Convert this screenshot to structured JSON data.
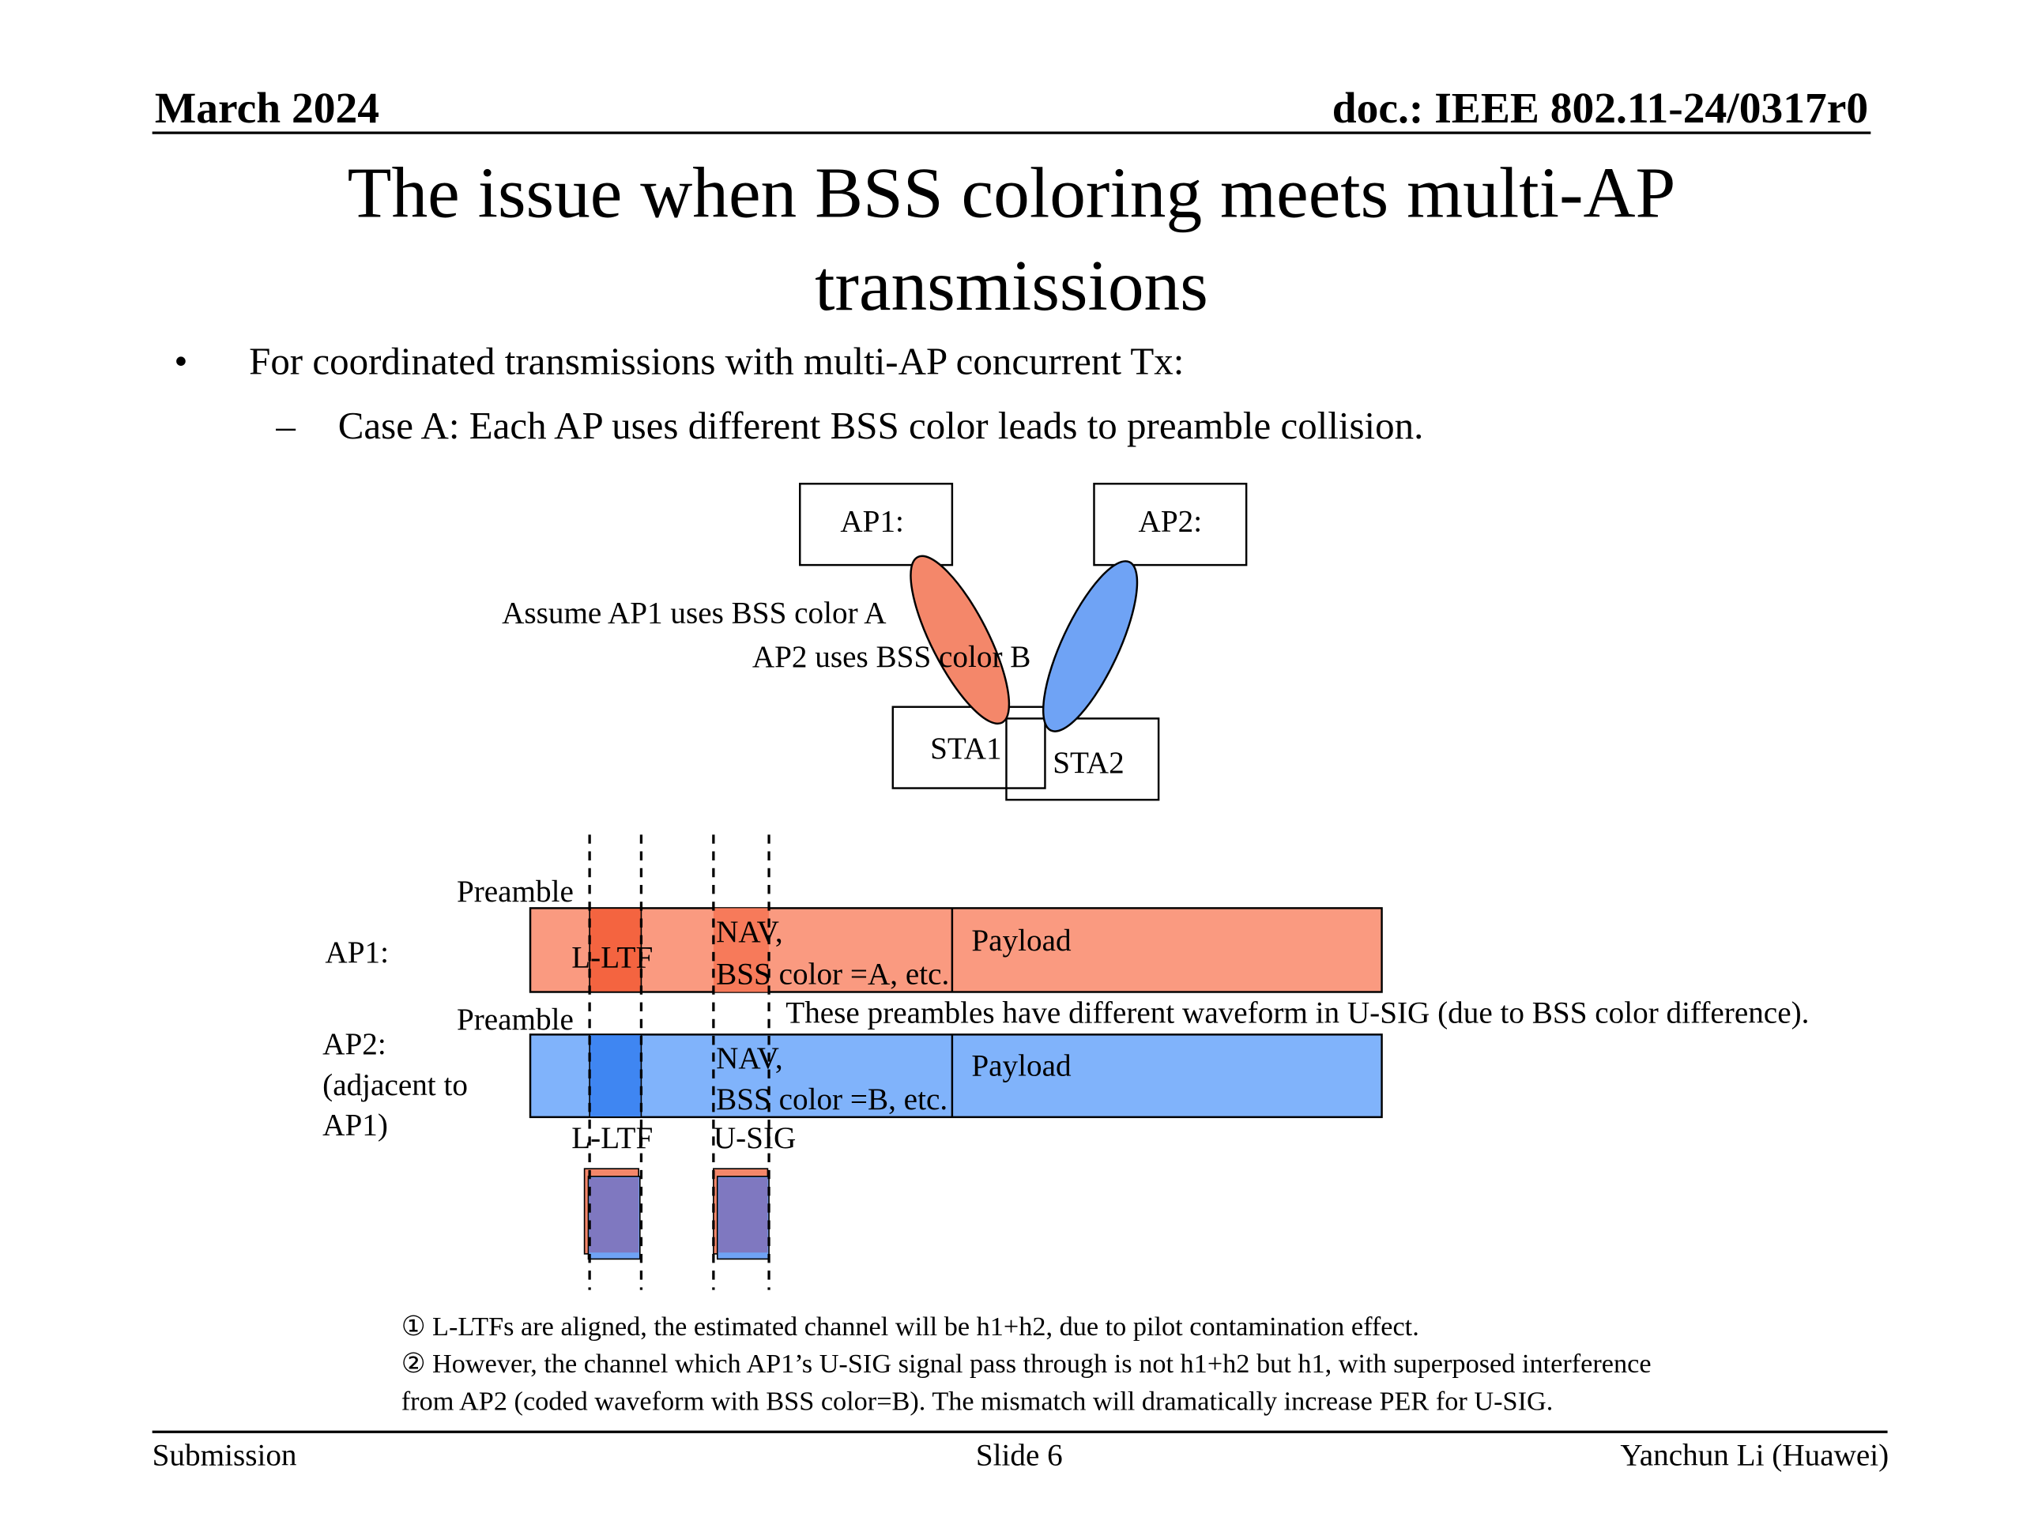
{
  "header": {
    "date": "March 2024",
    "doc": "doc.: IEEE 802.11-24/0317r0"
  },
  "title": [
    "The issue when BSS coloring meets multi-AP",
    "transmissions"
  ],
  "bullets": [
    {
      "marker": "•",
      "text": "For coordinated transmissions with multi-AP concurrent Tx:"
    },
    {
      "marker": "–",
      "text": "Case A: Each AP uses different BSS color leads to preamble collision."
    }
  ],
  "diagram": {
    "ap1_box": "AP1:",
    "ap2_box": "AP2:",
    "sta1": "STA1",
    "sta2": "STA2",
    "assume_lines": [
      "Assume AP1 uses BSS color A",
      "AP2 uses BSS color B"
    ],
    "ap1_row": {
      "label": "AP1:",
      "preamble": "Preamble",
      "lltf": "L-LTF",
      "nav_lines": [
        "NAV,",
        "BSS color =A, etc."
      ],
      "payload": "Payload"
    },
    "ap2_row": {
      "label_lines": [
        "AP2:",
        "(adjacent to",
        "AP1)"
      ],
      "preamble": "Preamble",
      "nav_lines": [
        "NAV,",
        "BSS color =B, etc."
      ],
      "payload": "Payload",
      "lltf": "L-LTF",
      "usig": "U-SIG"
    },
    "waveform_note": "These preambles have different waveform in U-SIG (due to BSS color difference)."
  },
  "notes": [
    "① L-LTFs are aligned, the estimated channel will be h1+h2, due to pilot contamination effect.",
    "② However, the channel which AP1’s U-SIG signal pass through is not h1+h2 but h1, with superposed interference",
    "from AP2 (coded waveform with BSS color=B). The mismatch will dramatically increase PER for U-SIG."
  ],
  "footer": {
    "left": "Submission",
    "center": "Slide 6",
    "right": "Yanchun Li (Huawei)"
  }
}
